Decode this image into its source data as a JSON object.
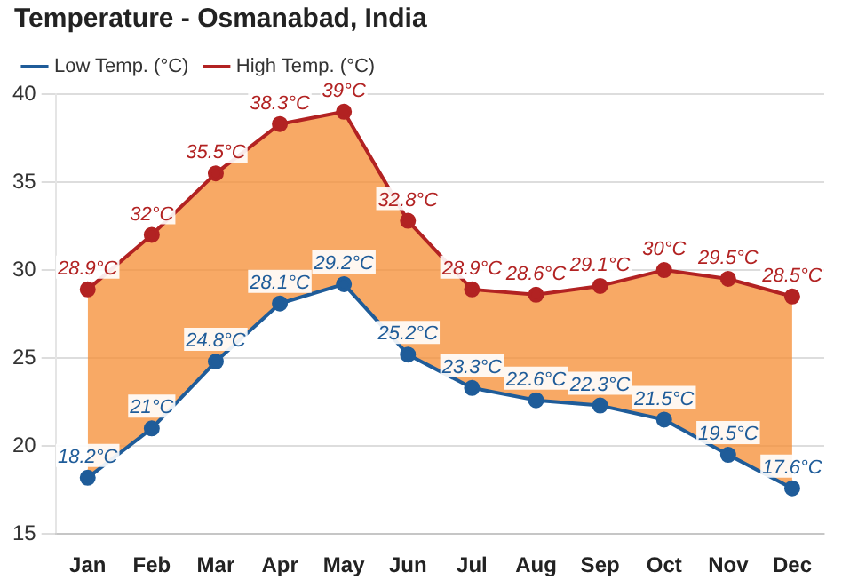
{
  "chart_data": {
    "type": "area",
    "title": "Temperature - Osmanabad, India",
    "categories": [
      "Jan",
      "Feb",
      "Mar",
      "Apr",
      "May",
      "Jun",
      "Jul",
      "Aug",
      "Sep",
      "Oct",
      "Nov",
      "Dec"
    ],
    "series": [
      {
        "name": "Low Temp. (°C)",
        "type": "line",
        "color": "#1f5c99",
        "values": [
          18.2,
          21,
          24.8,
          28.1,
          29.2,
          25.2,
          23.3,
          22.6,
          22.3,
          21.5,
          19.5,
          17.6
        ],
        "value_labels": [
          "18.2°C",
          "21°C",
          "24.8°C",
          "28.1°C",
          "29.2°C",
          "25.2°C",
          "23.3°C",
          "22.6°C",
          "22.3°C",
          "21.5°C",
          "19.5°C",
          "17.6°C"
        ]
      },
      {
        "name": "High Temp. (°C)",
        "type": "area",
        "color": "#b22222",
        "values": [
          28.9,
          32,
          35.5,
          38.3,
          39,
          32.8,
          28.9,
          28.6,
          29.1,
          30,
          29.5,
          28.5
        ],
        "value_labels": [
          "28.9°C",
          "32°C",
          "35.5°C",
          "38.3°C",
          "39°C",
          "32.8°C",
          "28.9°C",
          "28.6°C",
          "29.1°C",
          "30°C",
          "29.5°C",
          "28.5°C"
        ]
      }
    ],
    "ylim": [
      15,
      40
    ],
    "yticks": [
      15,
      20,
      25,
      30,
      35,
      40
    ],
    "grid": "y",
    "legend": "top left",
    "marker": "circle",
    "line_style": "solid"
  }
}
